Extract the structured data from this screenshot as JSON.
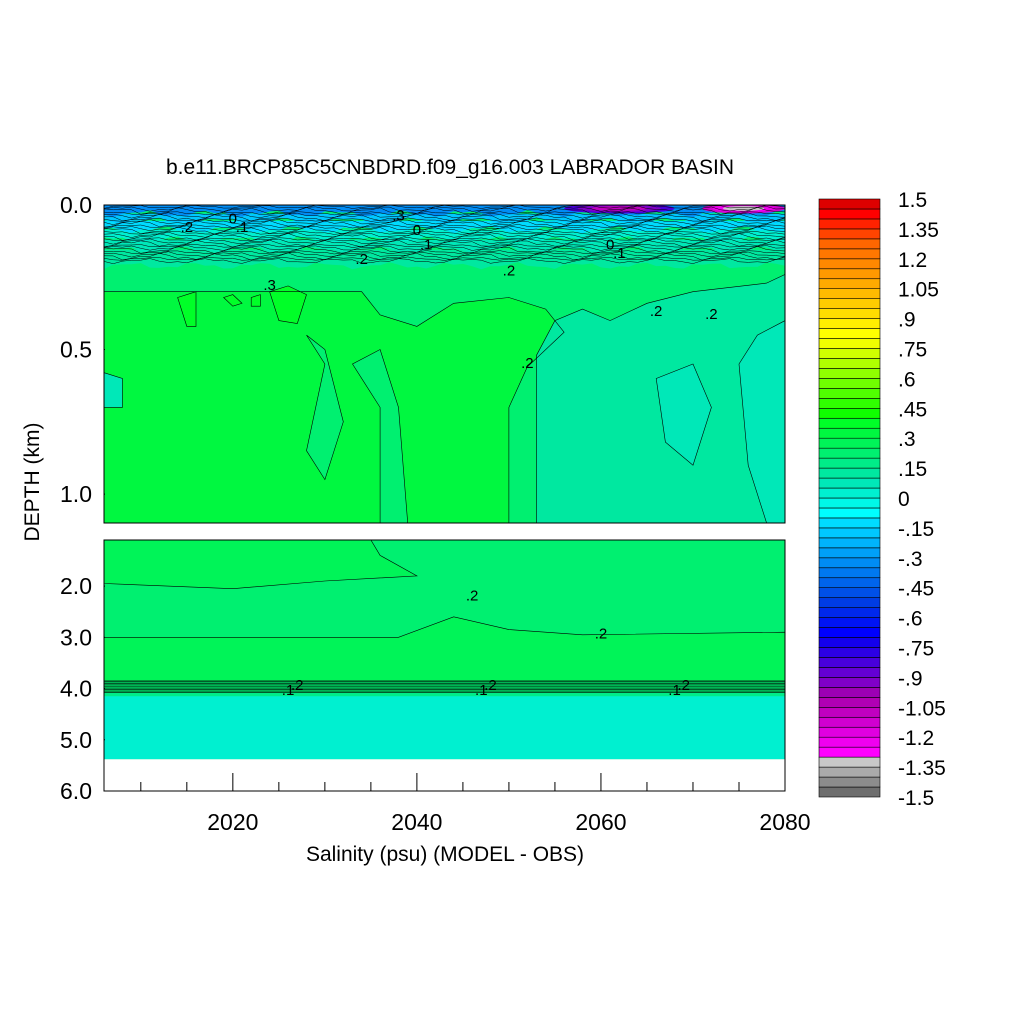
{
  "chart_data": {
    "type": "heatmap",
    "title": "b.e11.BRCP85C5CNBDRD.f09_g16.003 LABRADOR BASIN",
    "xlabel": "Salinity (psu) (MODEL - OBS)",
    "ylabel": "DEPTH (km)",
    "xlim": [
      2006,
      2080
    ],
    "x_ticks": [
      2020,
      2040,
      2060,
      2080
    ],
    "x_tick_labels": [
      "2020",
      "2040",
      "2060",
      "2080"
    ],
    "upper_panel": {
      "ylim": [
        0.0,
        1.1
      ],
      "y_ticks": [
        0.0,
        0.5,
        1.0
      ],
      "y_tick_labels": [
        "0.0",
        "0.5",
        "1.0"
      ]
    },
    "lower_panel": {
      "ylim": [
        1.1,
        6.0
      ],
      "y_ticks": [
        2.0,
        3.0,
        4.0,
        5.0,
        6.0
      ],
      "y_tick_labels": [
        "2.0",
        "3.0",
        "4.0",
        "5.0",
        "6.0"
      ]
    },
    "colorbar": {
      "min": -1.5,
      "max": 1.5,
      "step": 0.05,
      "labels": [
        "1.5",
        "1.35",
        "1.2",
        "1.05",
        ".9",
        ".75",
        ".6",
        ".45",
        ".3",
        ".15",
        "0",
        "-.15",
        "-.3",
        "-.45",
        "-.6",
        "-.75",
        "-.9",
        "-1.05",
        "-1.2",
        "-1.35",
        "-1.5"
      ],
      "colors": [
        "#6e6e6e",
        "#8c8c8c",
        "#aaaaaa",
        "#c8c8c8",
        "#ff00ff",
        "#f000f0",
        "#e000e0",
        "#d000d0",
        "#c000c0",
        "#b000b4",
        "#9c00b4",
        "#8000c8",
        "#6400d4",
        "#4800dc",
        "#2c00e4",
        "#1400ec",
        "#0000ff",
        "#0014f4",
        "#0028ec",
        "#003ce4",
        "#0050e8",
        "#0064ec",
        "#0078f0",
        "#008cf4",
        "#00a0f8",
        "#00b4fc",
        "#00c8ff",
        "#00dcff",
        "#00ffff",
        "#00f8e8",
        "#00f0d0",
        "#00e8b8",
        "#00e8a0",
        "#00ec88",
        "#00f070",
        "#00f458",
        "#00f840",
        "#00ff28",
        "#10ff00",
        "#30ff00",
        "#50ff00",
        "#70ff00",
        "#90ff00",
        "#b0ff00",
        "#d0ff00",
        "#f0ff00",
        "#ffff00",
        "#ffee00",
        "#ffdd00",
        "#ffcc00",
        "#ffbb00",
        "#ffaa00",
        "#ff9900",
        "#ff8800",
        "#ff7700",
        "#ff6600",
        "#ff4400",
        "#ff2200",
        "#ff0000",
        "#dd0000"
      ]
    },
    "regions": {
      "upper_base": 0.21,
      "upper": [
        {
          "value": 0.3,
          "poly": [
            [
              2006,
              0.3
            ],
            [
              2034,
              0.3
            ],
            [
              2036,
              0.38
            ],
            [
              2040,
              0.42
            ],
            [
              2044,
              0.34
            ],
            [
              2050,
              0.32
            ],
            [
              2054,
              0.36
            ],
            [
              2056,
              0.44
            ],
            [
              2052,
              0.56
            ],
            [
              2050,
              0.7
            ],
            [
              2050,
              1.1
            ],
            [
              2006,
              1.1
            ]
          ]
        },
        {
          "value": 0.24,
          "poly": [
            [
              2028,
              0.45
            ],
            [
              2030,
              0.55
            ],
            [
              2028,
              0.85
            ],
            [
              2030,
              0.95
            ],
            [
              2032,
              0.75
            ],
            [
              2030,
              0.5
            ]
          ]
        },
        {
          "value": 0.24,
          "poly": [
            [
              2033,
              0.55
            ],
            [
              2036,
              0.7
            ],
            [
              2036,
              1.1
            ],
            [
              2039,
              1.1
            ],
            [
              2038,
              0.7
            ],
            [
              2036,
              0.5
            ]
          ]
        },
        {
          "value": 0.11,
          "poly": [
            [
              2053,
              0.52
            ],
            [
              2055,
              0.4
            ],
            [
              2058,
              0.36
            ],
            [
              2061,
              0.4
            ],
            [
              2065,
              0.34
            ],
            [
              2070,
              0.3
            ],
            [
              2078,
              0.27
            ],
            [
              2080,
              0.24
            ],
            [
              2080,
              1.1
            ],
            [
              2053,
              1.1
            ]
          ]
        },
        {
          "value": 0.05,
          "poly": [
            [
              2075,
              0.55
            ],
            [
              2077,
              0.45
            ],
            [
              2080,
              0.4
            ],
            [
              2080,
              1.1
            ],
            [
              2078,
              1.1
            ],
            [
              2076,
              0.9
            ]
          ]
        },
        {
          "value": 0.05,
          "poly": [
            [
              2066,
              0.6
            ],
            [
              2070,
              0.55
            ],
            [
              2072,
              0.7
            ],
            [
              2070,
              0.9
            ],
            [
              2067,
              0.82
            ]
          ]
        },
        {
          "value": 0.05,
          "poly": [
            [
              2006,
              0.58
            ],
            [
              2008,
              0.6
            ],
            [
              2008,
              0.7
            ],
            [
              2006,
              0.7
            ]
          ]
        },
        {
          "value": 0.36,
          "poly": [
            [
              2014,
              0.32
            ],
            [
              2016,
              0.3
            ],
            [
              2016,
              0.42
            ],
            [
              2015,
              0.42
            ]
          ]
        },
        {
          "value": 0.36,
          "poly": [
            [
              2024,
              0.3
            ],
            [
              2026,
              0.28
            ],
            [
              2028,
              0.31
            ],
            [
              2027,
              0.41
            ],
            [
              2025,
              0.4
            ]
          ]
        },
        {
          "value": 0.36,
          "poly": [
            [
              2019,
              0.32
            ],
            [
              2020,
              0.31
            ],
            [
              2021,
              0.34
            ],
            [
              2020,
              0.35
            ]
          ]
        },
        {
          "value": 0.36,
          "poly": [
            [
              2022,
              0.32
            ],
            [
              2023,
              0.31
            ],
            [
              2023,
              0.35
            ],
            [
              2022,
              0.35
            ]
          ]
        }
      ],
      "top_band": [
        {
          "value": 0.15,
          "d0": 0.155,
          "d1": 0.21
        },
        {
          "value": 0.08,
          "d0": 0.12,
          "d1": 0.155
        },
        {
          "value": 0.0,
          "d0": 0.085,
          "d1": 0.12
        },
        {
          "value": -0.1,
          "d0": 0.055,
          "d1": 0.085
        },
        {
          "value": -0.2,
          "d0": 0.03,
          "d1": 0.055
        },
        {
          "value": -0.3,
          "d0": 0.0,
          "d1": 0.03
        }
      ],
      "surface_spots": [
        {
          "value": -0.85,
          "x0": 2056,
          "x1": 2068
        },
        {
          "value": -1.15,
          "x0": 2071,
          "x1": 2080
        }
      ],
      "lower_base": 0.23,
      "lower": [
        {
          "value": 0.28,
          "poly": [
            [
              2006,
              1.1
            ],
            [
              2035,
              1.1
            ],
            [
              2036,
              1.4
            ],
            [
              2040,
              1.8
            ],
            [
              2030,
              1.9
            ],
            [
              2020,
              2.05
            ],
            [
              2006,
              1.95
            ]
          ]
        },
        {
          "value": 0.28,
          "poly": [
            [
              2006,
              3.0
            ],
            [
              2038,
              3.0
            ],
            [
              2044,
              2.6
            ],
            [
              2050,
              2.85
            ],
            [
              2058,
              2.95
            ],
            [
              2080,
              2.9
            ],
            [
              2080,
              3.85
            ],
            [
              2006,
              3.85
            ]
          ]
        },
        {
          "value": 0.19,
          "poly": [
            [
              2006,
              4.08
            ],
            [
              2080,
              4.08
            ],
            [
              2080,
              5.38
            ],
            [
              2006,
              5.38
            ]
          ]
        },
        {
          "value": 0.01,
          "poly": [
            [
              2006,
              4.15
            ],
            [
              2080,
              4.15
            ],
            [
              2080,
              5.38
            ],
            [
              2006,
              5.38
            ]
          ]
        }
      ]
    },
    "contour_labels": [
      {
        "text": ".2",
        "x": 2015,
        "y": 0.08
      },
      {
        "text": "0",
        "x": 2020,
        "y": 0.05
      },
      {
        "text": ".1",
        "x": 2021,
        "y": 0.08
      },
      {
        "text": ".2",
        "x": 2034,
        "y": 0.19
      },
      {
        "text": ".1",
        "x": 2041,
        "y": 0.14
      },
      {
        "text": "0",
        "x": 2040,
        "y": 0.09
      },
      {
        "text": ".3",
        "x": 2038,
        "y": 0.04
      },
      {
        "text": ".2",
        "x": 2050,
        "y": 0.23
      },
      {
        "text": "0",
        "x": 2061,
        "y": 0.14
      },
      {
        "text": ".1",
        "x": 2062,
        "y": 0.17
      },
      {
        "text": ".3",
        "x": 2024,
        "y": 0.28
      },
      {
        "text": ".2",
        "x": 2066,
        "y": 0.37
      },
      {
        "text": ".2",
        "x": 2072,
        "y": 0.38
      },
      {
        "text": ".2",
        "x": 2052,
        "y": 0.55
      },
      {
        "text": ".2",
        "x": 2046,
        "y": 2.2
      },
      {
        "text": ".2",
        "x": 2060,
        "y": 2.95
      },
      {
        "text": ".2",
        "x": 2027,
        "y": 3.95
      },
      {
        "text": ".1",
        "x": 2026,
        "y": 4.05
      },
      {
        "text": ".2",
        "x": 2048,
        "y": 3.95
      },
      {
        "text": ".1",
        "x": 2047,
        "y": 4.05
      },
      {
        "text": ".2",
        "x": 2069,
        "y": 3.95
      },
      {
        "text": ".1",
        "x": 2068,
        "y": 4.05
      }
    ],
    "grid": false,
    "legend": "colorbar-right"
  }
}
